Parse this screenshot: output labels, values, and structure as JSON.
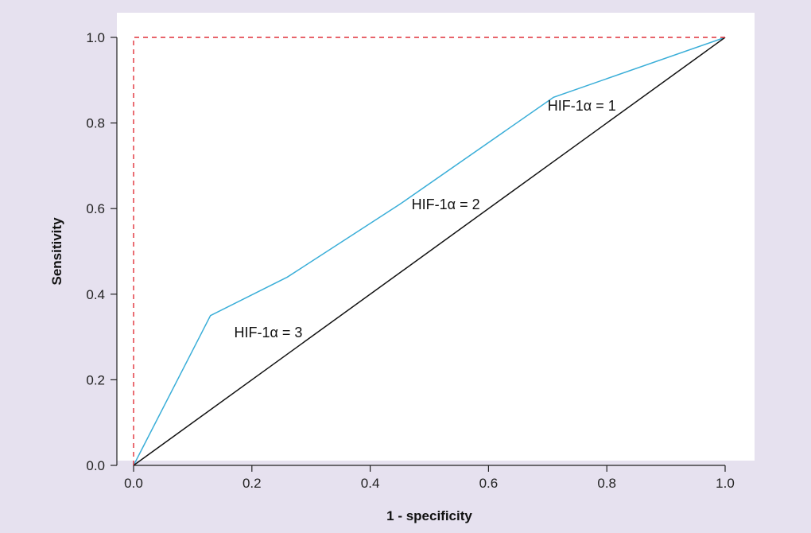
{
  "chart_data": {
    "type": "line",
    "title": "",
    "xlabel": "1 - specificity",
    "ylabel": "Sensitivity",
    "xlim": [
      0,
      1
    ],
    "ylim": [
      0,
      1
    ],
    "x_ticks": [
      "0.0",
      "0.2",
      "0.4",
      "0.6",
      "0.8",
      "1.0"
    ],
    "y_ticks": [
      "0.0",
      "0.2",
      "0.4",
      "0.6",
      "0.8",
      "1.0"
    ],
    "grid": false,
    "legend": "none",
    "series": [
      {
        "color": "#3aaed8",
        "points": [
          [
            0,
            0
          ],
          [
            0.13,
            0.35
          ],
          [
            0.26,
            0.44
          ],
          [
            0.45,
            0.61
          ],
          [
            0.71,
            0.86
          ],
          [
            1,
            1
          ]
        ]
      },
      {
        "color": "#111111",
        "points": [
          [
            0,
            0
          ],
          [
            1,
            1
          ]
        ]
      },
      {
        "color": "#e0303a",
        "dashed": true,
        "points": [
          [
            0,
            0
          ],
          [
            0,
            1
          ],
          [
            1,
            1
          ]
        ]
      }
    ],
    "annotations": [
      {
        "text": "HIF-1α = 3",
        "x": 0.17,
        "y": 0.31
      },
      {
        "text": "HIF-1α = 2",
        "x": 0.47,
        "y": 0.61
      },
      {
        "text": "HIF-1α = 1",
        "x": 0.7,
        "y": 0.84
      }
    ]
  }
}
